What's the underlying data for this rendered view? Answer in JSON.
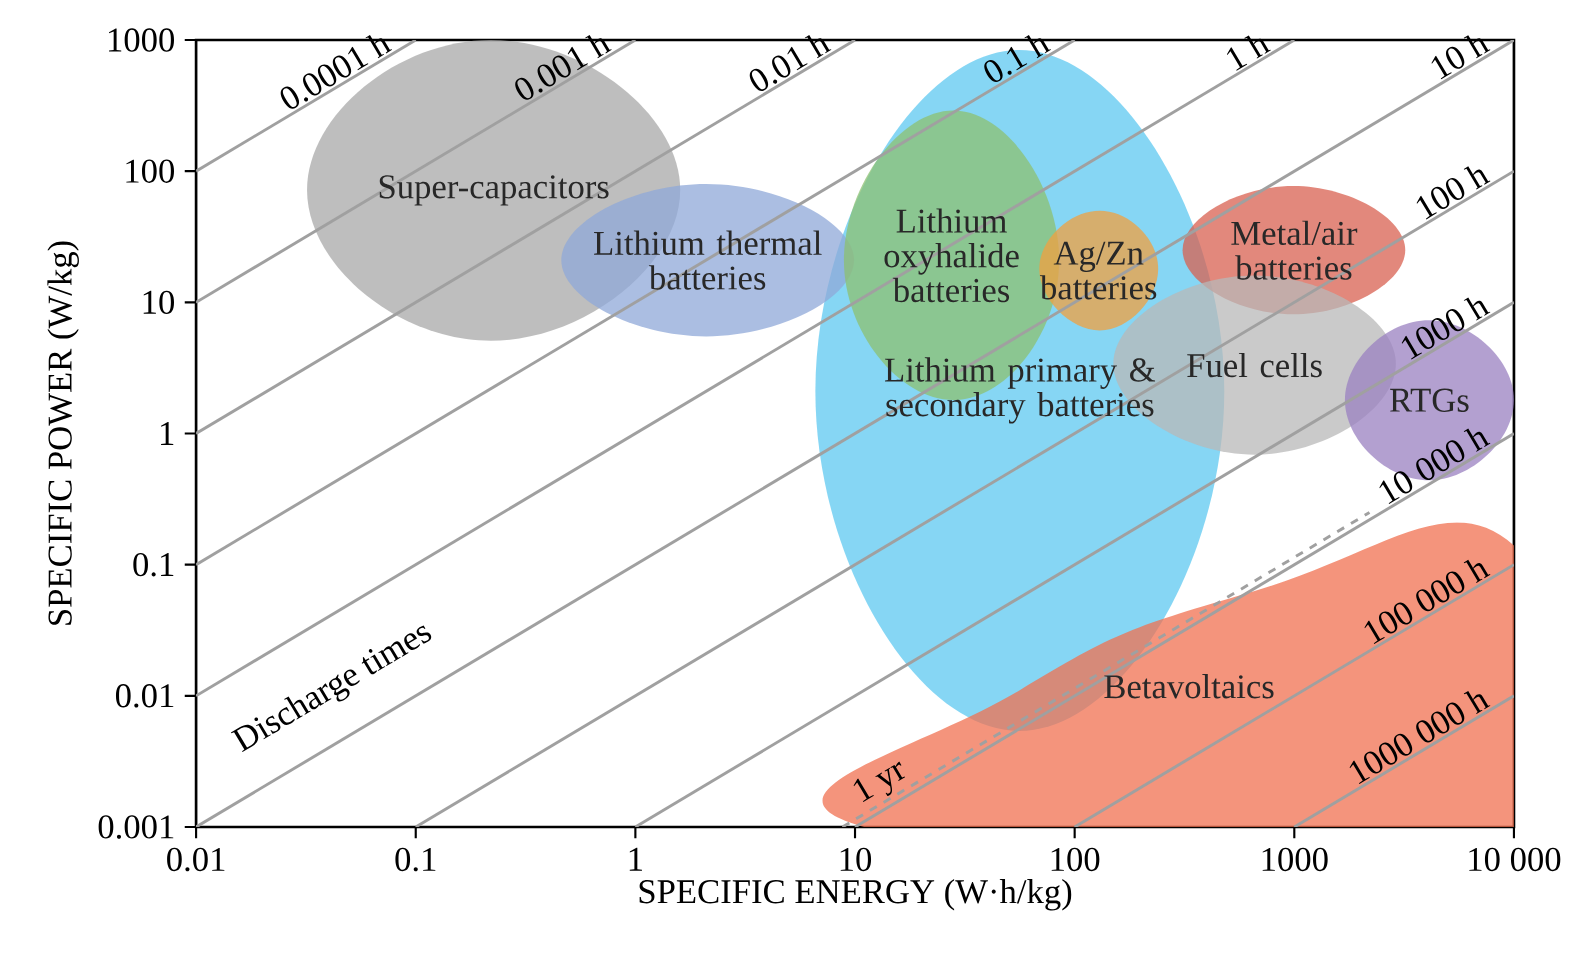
{
  "chart_data": {
    "type": "line",
    "xlabel": "SPECIFIC ENERGY (W·h/kg)",
    "ylabel": "SPECIFIC POWER (W/kg)",
    "log": "xy",
    "xlim": [
      0.01,
      10000
    ],
    "ylim": [
      0.001,
      1000
    ],
    "xticks": [
      0.01,
      0.1,
      1,
      10,
      100,
      1000,
      {
        "value": 10000,
        "label": "10 000"
      }
    ],
    "yticks": [
      0.001,
      0.01,
      0.1,
      1,
      10,
      100,
      1000
    ],
    "annotations": [
      "Discharge times"
    ],
    "series": [
      {
        "name": "Lithium primary & secondary batteries",
        "type": "area",
        "color": "#5ec8f0",
        "x": [
          480,
          56,
          6.6,
          56
        ],
        "values": [
          2.1,
          840,
          2.1,
          0.0054
        ]
      },
      {
        "name": "Super-capacitors",
        "type": "area",
        "color": "#a8a8a8",
        "x": [
          1.6,
          0.22,
          0.032,
          0.22
        ],
        "values": [
          72,
          1000,
          72,
          5.1
        ]
      },
      {
        "name": "Lithium thermal batteries",
        "type": "area",
        "color": "#8fa8d8",
        "x": [
          9.9,
          2.1,
          0.46,
          2.1
        ],
        "values": [
          21,
          80,
          21,
          5.5
        ]
      },
      {
        "name": "Lithium oxyhalide batteries",
        "type": "area",
        "color": "#8cc070",
        "x": [
          85,
          28,
          8.9,
          28
        ],
        "values": [
          21,
          290,
          21,
          1.8
        ]
      },
      {
        "name": "Ag/Zn batteries",
        "type": "area",
        "color": "#f0a040",
        "x": [
          240,
          130,
          69,
          130
        ],
        "values": [
          18,
          50,
          18,
          6.1
        ]
      },
      {
        "name": "Metal/air batteries",
        "type": "area",
        "color": "#d86050",
        "x": [
          3200,
          990,
          310,
          990
        ],
        "values": [
          25,
          77,
          25,
          8.1
        ]
      },
      {
        "name": "Fuel cells",
        "type": "area",
        "color": "#b8b8b8",
        "x": [
          2900,
          660,
          150,
          660
        ],
        "values": [
          3.4,
          16,
          3.4,
          0.69
        ]
      },
      {
        "name": "RTGs",
        "type": "area",
        "color": "#9a80c0",
        "x": [
          10000,
          4100,
          1700,
          4100
        ],
        "values": [
          1.8,
          7.3,
          1.8,
          0.44
        ]
      },
      {
        "name": "Betavoltaics",
        "type": "area",
        "color": "#f07050",
        "x": [
          11,
          56,
          660,
          10000,
          10000
        ],
        "values": [
          0.001,
          0.011,
          0.063,
          0.14,
          0.001
        ]
      },
      {
        "name": "0.0001 h",
        "color": "#a0a0a0",
        "line_style": "solid",
        "x": [
          0.01,
          0.1
        ],
        "values": [
          100,
          1000
        ]
      },
      {
        "name": "0.001 h",
        "color": "#a0a0a0",
        "line_style": "solid",
        "x": [
          0.01,
          1
        ],
        "values": [
          10,
          1000
        ]
      },
      {
        "name": "0.01 h",
        "color": "#a0a0a0",
        "line_style": "solid",
        "x": [
          0.01,
          10
        ],
        "values": [
          1,
          1000
        ]
      },
      {
        "name": "0.1 h",
        "color": "#a0a0a0",
        "line_style": "solid",
        "x": [
          0.01,
          100
        ],
        "values": [
          0.1,
          1000
        ]
      },
      {
        "name": "1 h",
        "color": "#a0a0a0",
        "line_style": "solid",
        "x": [
          0.01,
          1000
        ],
        "values": [
          0.01,
          1000
        ]
      },
      {
        "name": "10 h",
        "color": "#a0a0a0",
        "line_style": "solid",
        "x": [
          0.01,
          10000
        ],
        "values": [
          0.001,
          1000
        ]
      },
      {
        "name": "100 h",
        "color": "#a0a0a0",
        "line_style": "solid",
        "x": [
          0.1,
          10000
        ],
        "values": [
          0.001,
          100
        ]
      },
      {
        "name": "1000 h",
        "color": "#a0a0a0",
        "line_style": "solid",
        "x": [
          1,
          10000
        ],
        "values": [
          0.001,
          10
        ]
      },
      {
        "name": "10 000 h",
        "color": "#a0a0a0",
        "line_style": "solid",
        "x": [
          10,
          10000
        ],
        "values": [
          0.001,
          1
        ]
      },
      {
        "name": "100 000 h",
        "color": "#a0a0a0",
        "line_style": "solid",
        "x": [
          100,
          10000
        ],
        "values": [
          0.001,
          0.1
        ]
      },
      {
        "name": "1000 000 h",
        "color": "#a0a0a0",
        "line_style": "solid",
        "x": [
          1000,
          10000
        ],
        "values": [
          0.001,
          0.01
        ]
      },
      {
        "name": "1 yr",
        "color": "#a0a0a0",
        "line_style": "dashed",
        "x": [
          8.76,
          2200
        ],
        "values": [
          0.001,
          0.25
        ]
      }
    ]
  }
}
